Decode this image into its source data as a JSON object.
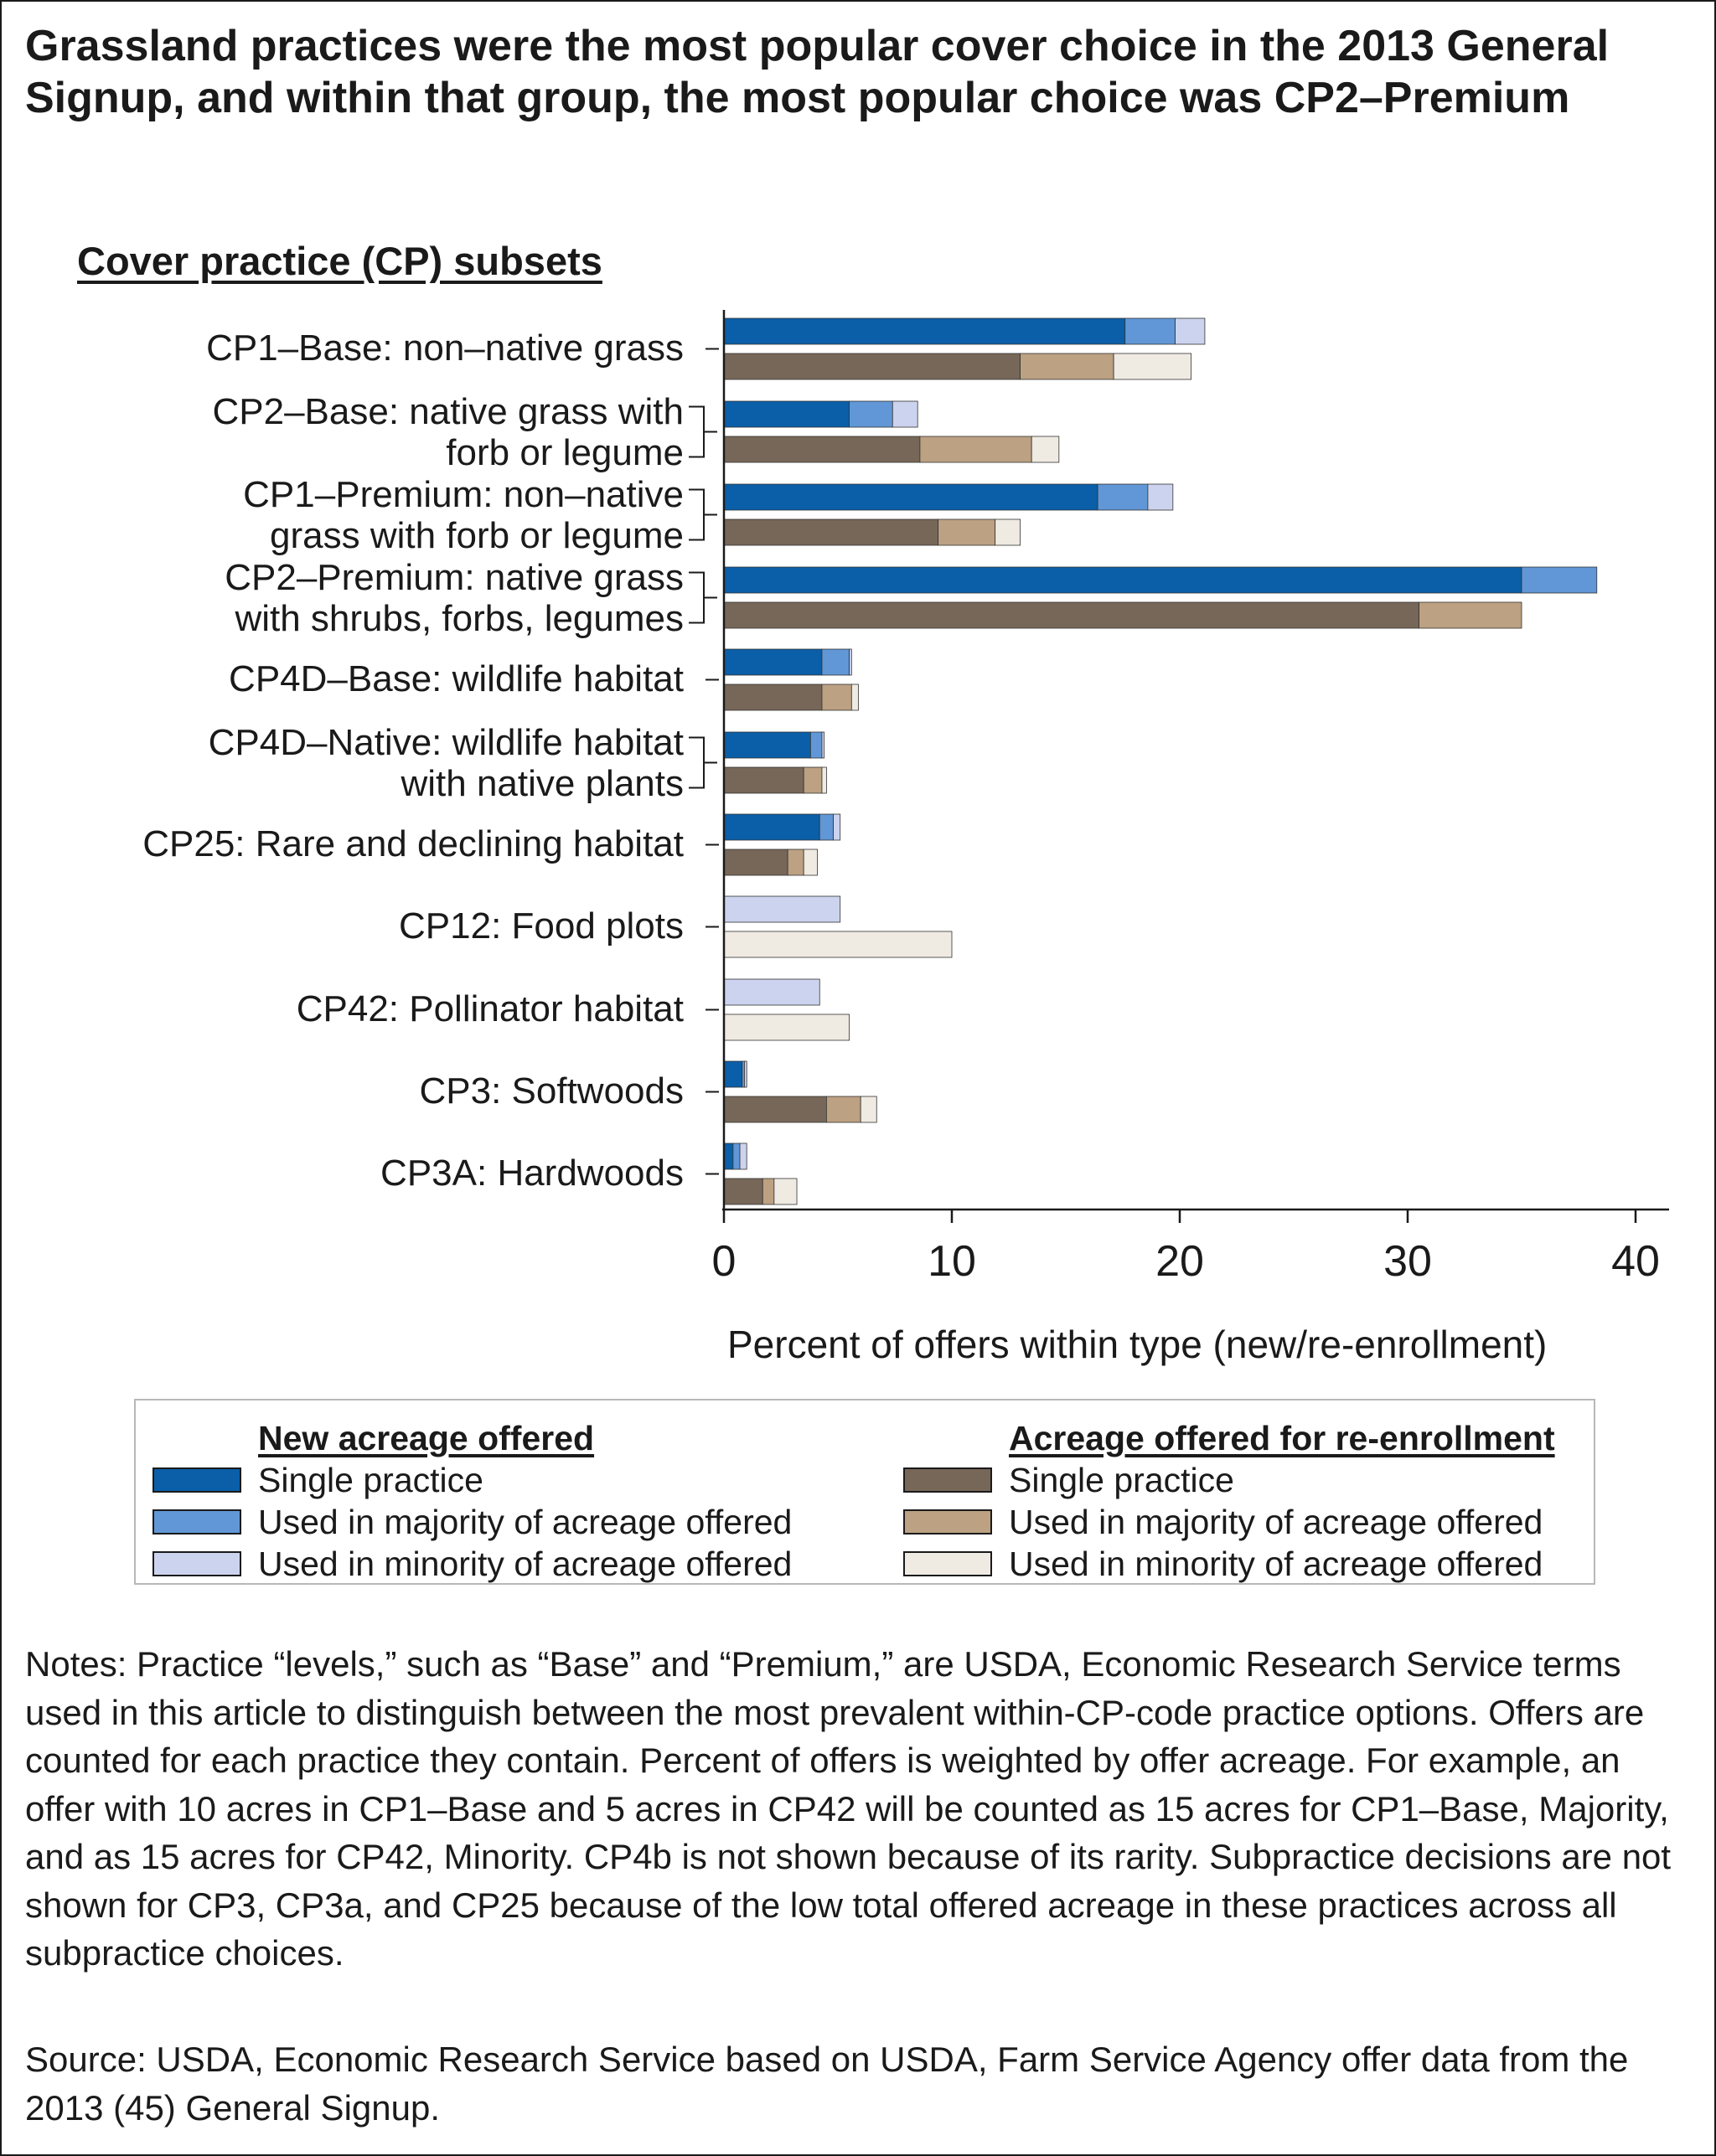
{
  "title": "Grassland practices were the most popular cover choice in the 2013 General Signup, and within that group, the most popular choice was CP2–Premium",
  "chart_data": {
    "type": "bar",
    "orientation": "horizontal",
    "stacked": true,
    "category_header": "Cover practice (CP) subsets",
    "categories": [
      "CP1–Base: non–native grass",
      "CP2–Base: native grass with\nforb or legume",
      "CP1–Premium: non–native\ngrass with forb or legume",
      "CP2–Premium: native grass\nwith shrubs, forbs, legumes",
      "CP4D–Base: wildlife habitat",
      "CP4D–Native: wildlife habitat\nwith native plants",
      "CP25: Rare and declining habitat",
      "CP12: Food plots",
      "CP42: Pollinator habitat",
      "CP3: Softwoods",
      "CP3A: Hardwoods"
    ],
    "xlabel": "Percent of offers within type (new/re-enrollment)",
    "xlim": [
      0,
      42
    ],
    "xticks": [
      "0",
      "10",
      "20",
      "30",
      "40"
    ],
    "groups": [
      {
        "name": "New acreage offered",
        "series": [
          {
            "name": "Single practice",
            "color": "#0a5fa8",
            "values": [
              17.6,
              5.5,
              16.4,
              35.0,
              4.3,
              3.8,
              4.2,
              0,
              0,
              0.8,
              0.4
            ]
          },
          {
            "name": "Used in majority of acreage offered",
            "color": "#6197d6",
            "values": [
              2.2,
              1.9,
              2.2,
              3.3,
              1.2,
              0.5,
              0.6,
              0,
              0,
              0.1,
              0.3
            ]
          },
          {
            "name": "Used in minority of acreage offered",
            "color": "#ccd3ee",
            "values": [
              1.3,
              1.1,
              1.1,
              0,
              0.1,
              0.1,
              0.3,
              5.1,
              4.2,
              0.1,
              0.3
            ]
          }
        ]
      },
      {
        "name": "Acreage offered for re-enrollment",
        "series": [
          {
            "name": "Single practice",
            "color": "#776758",
            "values": [
              13.0,
              8.6,
              9.4,
              30.5,
              4.3,
              3.5,
              2.8,
              0,
              0,
              4.5,
              1.7
            ]
          },
          {
            "name": "Used in majority of acreage offered",
            "color": "#bca182",
            "values": [
              4.1,
              4.9,
              2.5,
              4.5,
              1.3,
              0.8,
              0.7,
              0,
              0,
              1.5,
              0.5
            ]
          },
          {
            "name": "Used in minority of acreage offered",
            "color": "#efeae2",
            "values": [
              3.4,
              1.2,
              1.1,
              0,
              0.3,
              0.2,
              0.6,
              10.0,
              5.5,
              0.7,
              1.0
            ]
          }
        ]
      }
    ]
  },
  "notes": "Notes: Practice “levels,” such as “Base” and “Premium,” are USDA, Economic Research Service terms used in this article to distinguish between the most prevalent within-CP-code practice options. Offers are counted for each practice they contain. Percent of offers is weighted by offer acreage. For example, an offer with 10 acres in CP1–Base and 5 acres in CP42 will be counted as 15 acres for CP1–Base, Majority, and as 15 acres for CP42, Minority. CP4b is not shown because of its rarity. Subpractice decisions are not shown for CP3, CP3a, and CP25 because of the low total offered acreage in these practices across all subpractice choices.",
  "source": "Source: USDA, Economic Research Service based on USDA, Farm Service Agency offer data from the 2013 (45) General Signup."
}
